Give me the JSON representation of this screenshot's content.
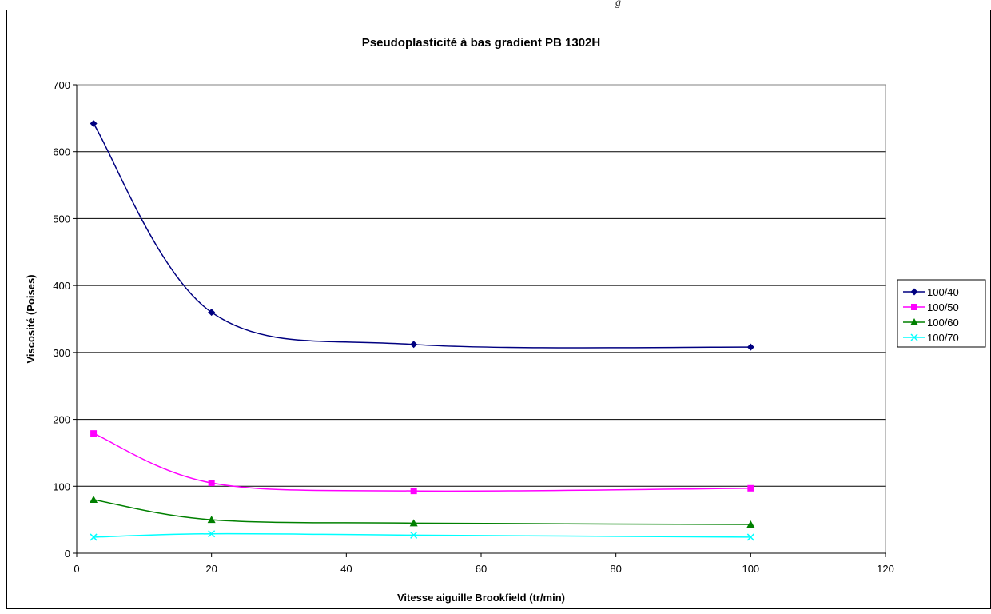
{
  "header_fragment": "g",
  "colors": {
    "grid": "#000000",
    "series_100_40": "#000080",
    "series_100_50": "#ff00ff",
    "series_100_60": "#008000",
    "series_100_70": "#00ffff"
  },
  "chart_data": {
    "type": "line",
    "title": "Pseudoplasticité à bas gradient PB 1302H",
    "xlabel": "Vitesse aiguille Brookfield (tr/min)",
    "ylabel": "Viscosité (Poises)",
    "xlim": [
      0,
      120
    ],
    "ylim": [
      0,
      700
    ],
    "x_ticks": [
      "0",
      "20",
      "40",
      "60",
      "80",
      "100",
      "120"
    ],
    "y_ticks": [
      "0",
      "100",
      "200",
      "300",
      "400",
      "500",
      "600",
      "700"
    ],
    "grid": "horizontal major gridlines",
    "legend_position": "right",
    "smoothed": true,
    "series": [
      {
        "name": "100/40",
        "marker": "diamond",
        "color": "#000080",
        "points": [
          [
            2.5,
            642
          ],
          [
            20,
            360
          ],
          [
            50,
            312
          ],
          [
            100,
            308
          ]
        ]
      },
      {
        "name": "100/50",
        "marker": "square",
        "color": "#ff00ff",
        "points": [
          [
            2.5,
            179
          ],
          [
            20,
            105
          ],
          [
            50,
            93
          ],
          [
            100,
            97
          ]
        ]
      },
      {
        "name": "100/60",
        "marker": "triangle",
        "color": "#008000",
        "points": [
          [
            2.5,
            80
          ],
          [
            20,
            50
          ],
          [
            50,
            45
          ],
          [
            100,
            43
          ]
        ]
      },
      {
        "name": "100/70",
        "marker": "x",
        "color": "#00ffff",
        "points": [
          [
            2.5,
            24
          ],
          [
            20,
            29
          ],
          [
            50,
            27
          ],
          [
            100,
            24
          ]
        ]
      }
    ]
  }
}
